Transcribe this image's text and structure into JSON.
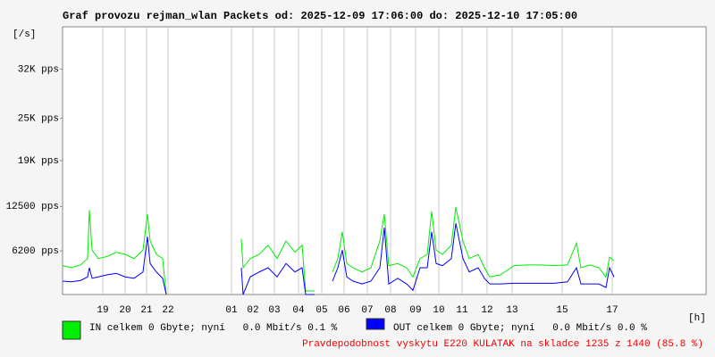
{
  "chart_data": {
    "type": "line",
    "title": "Graf provozu rejman_wlan Packets od: 2025-12-09 17:06:00 do: 2025-12-10 17:05:00",
    "y_label": "[/s]",
    "x_label": "[h]",
    "footer": "Pravdepodobnost vyskytu E220 KULATAK na skladce 1235 z 1440 (85.8 %)",
    "xlim": [
      0,
      1440
    ],
    "ylim": [
      0,
      38000
    ],
    "yticks": [
      {
        "value": 6200,
        "label": "6200 pps"
      },
      {
        "value": 12500,
        "label": "12500 pps"
      },
      {
        "value": 19000,
        "label": "19K pps"
      },
      {
        "value": 25000,
        "label": "25K pps"
      },
      {
        "value": 32000,
        "label": "32K pps"
      }
    ],
    "xticks": [
      {
        "value": 90,
        "label": "19"
      },
      {
        "value": 140,
        "label": "20"
      },
      {
        "value": 188,
        "label": "21"
      },
      {
        "value": 236,
        "label": "22"
      },
      {
        "value": 378,
        "label": "01"
      },
      {
        "value": 426,
        "label": "02"
      },
      {
        "value": 474,
        "label": "03"
      },
      {
        "value": 528,
        "label": "04"
      },
      {
        "value": 580,
        "label": "05"
      },
      {
        "value": 630,
        "label": "06"
      },
      {
        "value": 682,
        "label": "07"
      },
      {
        "value": 734,
        "label": "08"
      },
      {
        "value": 790,
        "label": "09"
      },
      {
        "value": 842,
        "label": "10"
      },
      {
        "value": 894,
        "label": "11"
      },
      {
        "value": 950,
        "label": "12"
      },
      {
        "value": 1006,
        "label": "13"
      },
      {
        "value": 1118,
        "label": "15"
      },
      {
        "value": 1230,
        "label": "17"
      }
    ],
    "grid": "x",
    "x": [
      0,
      20,
      40,
      56,
      60,
      66,
      80,
      100,
      120,
      140,
      160,
      180,
      190,
      196,
      210,
      224,
      232,
      316,
      400,
      404,
      420,
      440,
      460,
      480,
      500,
      520,
      536,
      544,
      552,
      564,
      584,
      604,
      616,
      626,
      636,
      650,
      670,
      690,
      710,
      720,
      730,
      750,
      770,
      784,
      800,
      816,
      826,
      836,
      850,
      870,
      880,
      896,
      910,
      930,
      944,
      956,
      980,
      1010,
      1040,
      1070,
      1100,
      1130,
      1150,
      1160,
      1180,
      1200,
      1216,
      1224,
      1234
    ],
    "series": [
      {
        "name": "IN celkem 0 Gbyte; nyní   0.0 Mbit/s 0.1 %",
        "color": "#00ee00",
        "values": [
          4100,
          3800,
          4200,
          5100,
          12000,
          6300,
          5100,
          5400,
          6000,
          5700,
          5100,
          6300,
          11400,
          7600,
          5700,
          5100,
          0,
          null,
          7900,
          3800,
          5100,
          5700,
          7000,
          5100,
          7600,
          6000,
          7000,
          500,
          500,
          500,
          null,
          3200,
          5100,
          8900,
          4400,
          3800,
          3200,
          3800,
          7600,
          11400,
          4100,
          4400,
          3800,
          2500,
          5100,
          5700,
          11800,
          6300,
          5700,
          7000,
          12400,
          7600,
          5100,
          5700,
          3800,
          2500,
          2800,
          4100,
          4200,
          4200,
          4100,
          4200,
          7300,
          3800,
          4200,
          3800,
          2500,
          5300,
          4800
        ]
      },
      {
        "name": "OUT celkem 0 Gbyte; nyní   0.0 Mbit/s 0.0 %",
        "color": "#0000ff",
        "values": [
          1900,
          1800,
          2000,
          2500,
          3800,
          2300,
          2500,
          2800,
          3000,
          2500,
          2300,
          3200,
          8200,
          4400,
          3200,
          2300,
          0,
          null,
          3800,
          0,
          2500,
          3200,
          3800,
          2500,
          4400,
          3200,
          3800,
          0,
          0,
          0,
          null,
          1900,
          3800,
          6300,
          2500,
          1900,
          1500,
          1900,
          3800,
          9500,
          1500,
          2300,
          1500,
          600,
          3800,
          3800,
          8900,
          4400,
          4100,
          5100,
          10100,
          5100,
          3200,
          3800,
          2300,
          1500,
          1500,
          1600,
          1600,
          1600,
          1600,
          1800,
          3800,
          1500,
          1500,
          1500,
          1000,
          3800,
          2500
        ]
      }
    ]
  }
}
